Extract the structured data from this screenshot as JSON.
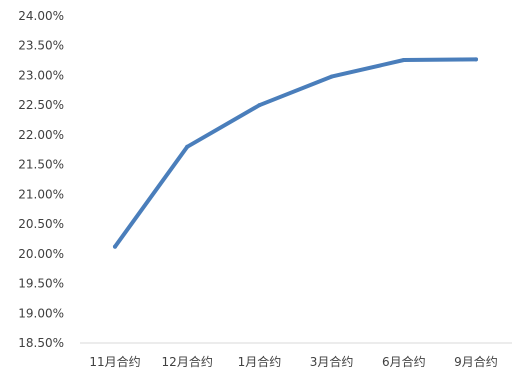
{
  "chart_data": {
    "type": "line",
    "title": "",
    "xlabel": "",
    "ylabel": "",
    "categories": [
      "11月合约",
      "12月合约",
      "1月合约",
      "3月合约",
      "6月合约",
      "9月合约"
    ],
    "series": [
      {
        "values": [
          20.12,
          21.8,
          22.5,
          22.98,
          23.26,
          23.27
        ],
        "color": "#4a7ebb"
      }
    ],
    "ylim": [
      18.5,
      24.0
    ],
    "yticks": [
      18.5,
      19.0,
      19.5,
      20.0,
      20.5,
      21.0,
      21.5,
      22.0,
      22.5,
      23.0,
      23.5,
      24.0
    ],
    "ytick_labels": [
      "18.50%",
      "19.00%",
      "19.50%",
      "20.00%",
      "20.50%",
      "21.00%",
      "21.50%",
      "22.00%",
      "22.50%",
      "23.00%",
      "23.50%",
      "24.00%"
    ],
    "grid": false,
    "legend": "none",
    "axis_color": "#d9d9d9"
  }
}
